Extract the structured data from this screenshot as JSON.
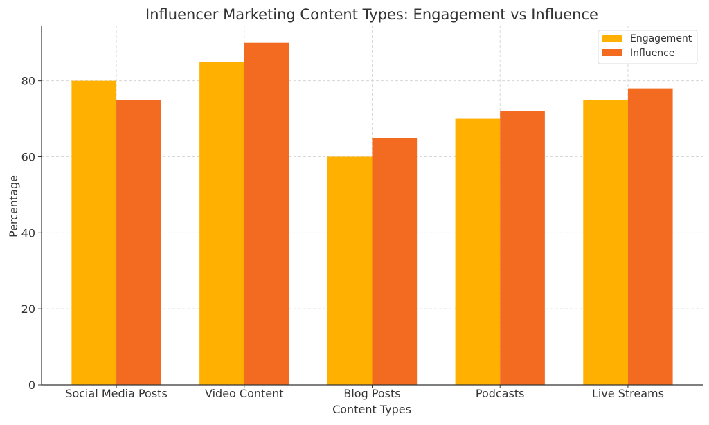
{
  "chart_data": {
    "type": "bar",
    "title": "Influencer Marketing Content Types: Engagement vs Influence",
    "xlabel": "Content Types",
    "ylabel": "Percentage",
    "categories": [
      "Social Media Posts",
      "Video Content",
      "Blog Posts",
      "Podcasts",
      "Live Streams"
    ],
    "series": [
      {
        "name": "Engagement",
        "values": [
          80,
          85,
          60,
          70,
          75
        ],
        "color": "#FFB000"
      },
      {
        "name": "Influence",
        "values": [
          75,
          90,
          65,
          72,
          78
        ],
        "color": "#F26B21"
      }
    ],
    "ylim": [
      0,
      94.5
    ],
    "yticks": [
      0,
      20,
      40,
      60,
      80
    ],
    "grid": true,
    "legend_position": "top-right"
  }
}
